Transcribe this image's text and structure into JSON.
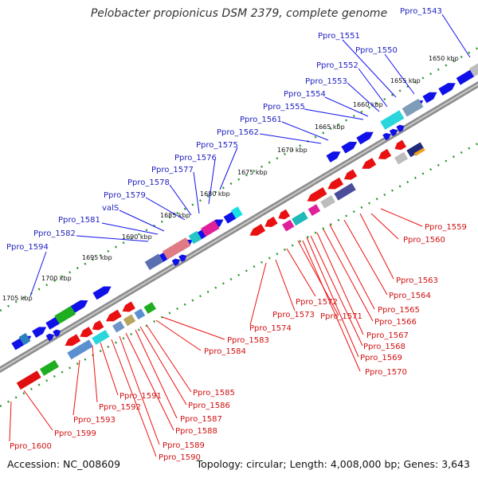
{
  "title": "Pelobacter propionicus DSM 2379, complete genome",
  "accession": "Accession: NC_008609",
  "topology": "Topology: circular; Length: 4,008,000 bp; Genes: 3,643",
  "colors": {
    "forward_genes": "#1010e8",
    "reverse_genes": "#e81010",
    "label_forward": "#1f1fc0",
    "label_reverse": "#d01010",
    "backbone": "#888888",
    "tick": "#2a8a2a"
  },
  "ticks": [
    "1650 kbp",
    "1655 kbp",
    "1660 kbp",
    "1665 kbp",
    "1670 kbp",
    "1675 kbp",
    "1680 kbp",
    "1685 kbp",
    "1690 kbp",
    "1695 kbp",
    "1700 kbp",
    "1705 kbp"
  ],
  "labels_forward": [
    "Ppro_1543",
    "Ppro_1551",
    "Ppro_1550",
    "Ppro_1552",
    "Ppro_1553",
    "Ppro_1554",
    "Ppro_1555",
    "Ppro_1561",
    "Ppro_1562",
    "Ppro_1575",
    "Ppro_1576",
    "Ppro_1577",
    "Ppro_1578",
    "Ppro_1579",
    "valS",
    "Ppro_1581",
    "Ppro_1582",
    "Ppro_1594"
  ],
  "labels_reverse": [
    "Ppro_1559",
    "Ppro_1560",
    "Ppro_1563",
    "Ppro_1564",
    "Ppro_1565",
    "Ppro_1566",
    "Ppro_1567",
    "Ppro_1568",
    "Ppro_1569",
    "Ppro_1570",
    "Ppro_1571",
    "Ppro_1572",
    "Ppro_1573",
    "Ppro_1574",
    "Ppro_1583",
    "Ppro_1584",
    "Ppro_1585",
    "Ppro_1586",
    "Ppro_1587",
    "Ppro_1588",
    "Ppro_1589",
    "Ppro_1590",
    "Ppro_1591",
    "Ppro_1592",
    "Ppro_1593",
    "Ppro_1599",
    "Ppro_1600"
  ]
}
